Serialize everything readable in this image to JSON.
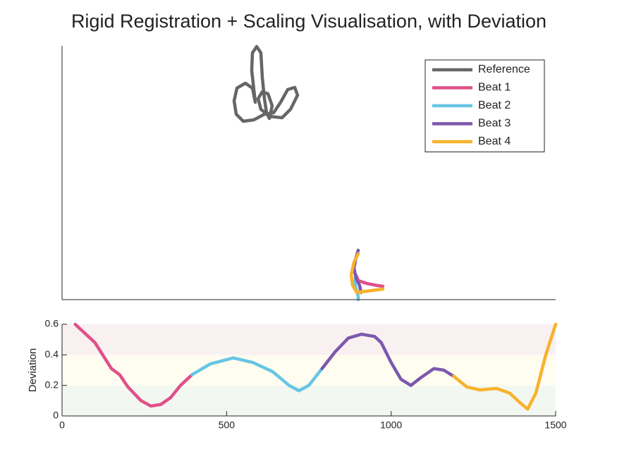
{
  "title": "Rigid Registration + Scaling Visualisation, with Deviation",
  "chart_data": [
    {
      "type": "line",
      "xlim": [
        0,
        700
      ],
      "ylim": [
        0,
        360
      ],
      "legend": "northeast",
      "series": [
        {
          "name": "Reference",
          "color": "#666666",
          "x": [
            244,
            248,
            260,
            270,
            274,
            269,
            270,
            276,
            282,
            284,
            287,
            290,
            294,
            298,
            292,
            284,
            278,
            282,
            294,
            312,
            324,
            334,
            330,
            320,
            310,
            300,
            287,
            272,
            257,
            247,
            244
          ],
          "values": [
            282,
            300,
            307,
            300,
            280,
            325,
            350,
            359,
            350,
            315,
            285,
            265,
            257,
            275,
            292,
            295,
            285,
            270,
            260,
            258,
            270,
            290,
            301,
            298,
            280,
            265,
            263,
            255,
            253,
            263,
            282
          ]
        },
        {
          "name": "Beat 1",
          "color": "#e0508a",
          "x": [
            417,
            420,
            432,
            447,
            455
          ],
          "values": [
            35,
            27,
            23,
            20,
            19
          ]
        },
        {
          "name": "Beat 2",
          "color": "#66c6e3",
          "x": [
            417,
            415,
            417,
            420,
            420
          ],
          "values": [
            35,
            25,
            15,
            5,
            0
          ]
        },
        {
          "name": "Beat 3",
          "color": "#7c58ad",
          "x": [
            420,
            417,
            414,
            417,
            422,
            424
          ],
          "values": [
            70,
            60,
            45,
            30,
            20,
            10
          ]
        },
        {
          "name": "Beat 4",
          "color": "#f8b22c",
          "x": [
            420,
            414,
            410,
            412,
            418,
            432,
            455
          ],
          "values": [
            65,
            53,
            35,
            20,
            10,
            12,
            15
          ]
        }
      ]
    },
    {
      "type": "line",
      "xlim": [
        0,
        1500
      ],
      "ylim": [
        0,
        0.6
      ],
      "xticks": [
        0,
        500,
        1000,
        1500
      ],
      "yticks": [
        0,
        0.2,
        0.4,
        0.6
      ],
      "ylabel": "Deviation",
      "bands": [
        {
          "range": [
            0,
            0.2
          ],
          "color": "#f3f7f1"
        },
        {
          "range": [
            0.2,
            0.4
          ],
          "color": "#fffcf0"
        },
        {
          "range": [
            0.4,
            0.6
          ],
          "color": "#f9f0f2"
        }
      ],
      "series": [
        {
          "color": "#e0508a",
          "x": [
            40,
            100,
            150,
            175,
            200,
            240,
            270,
            300,
            330,
            360,
            395
          ],
          "values": [
            0.6,
            0.48,
            0.31,
            0.27,
            0.19,
            0.1,
            0.065,
            0.075,
            0.12,
            0.2,
            0.27
          ]
        },
        {
          "color": "#66c6e3",
          "x": [
            395,
            450,
            520,
            580,
            640,
            690,
            720,
            750,
            790
          ],
          "values": [
            0.27,
            0.34,
            0.38,
            0.35,
            0.29,
            0.2,
            0.165,
            0.2,
            0.31
          ]
        },
        {
          "color": "#7c58ad",
          "x": [
            790,
            830,
            870,
            910,
            950,
            970,
            1000,
            1030,
            1060,
            1090,
            1130,
            1160,
            1190
          ],
          "values": [
            0.31,
            0.42,
            0.51,
            0.535,
            0.52,
            0.48,
            0.35,
            0.24,
            0.2,
            0.25,
            0.31,
            0.3,
            0.26
          ]
        },
        {
          "color": "#f8b22c",
          "x": [
            1190,
            1230,
            1270,
            1320,
            1360,
            1390,
            1415,
            1440,
            1470,
            1500
          ],
          "values": [
            0.26,
            0.19,
            0.17,
            0.18,
            0.15,
            0.09,
            0.045,
            0.15,
            0.4,
            0.6
          ]
        }
      ]
    }
  ]
}
